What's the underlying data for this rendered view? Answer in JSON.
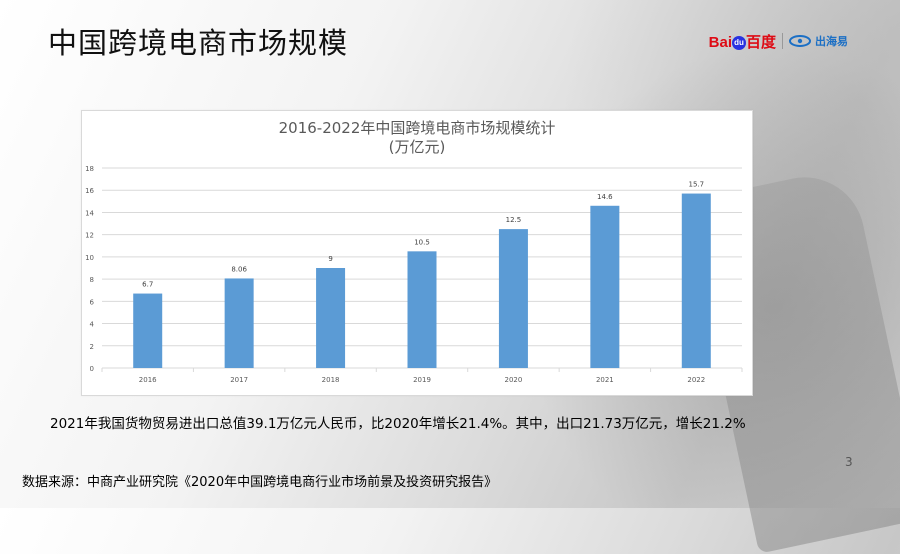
{
  "slide": {
    "title": "中国跨境电商市场规模",
    "paragraph": "2021年我国货物贸易进出口总值39.1万亿元人民币，比2020年增长21.4%。其中，出口21.73万亿元，增长21.2%",
    "source": "数据来源：中商产业研究院《2020年中国跨境电商行业市场前景及投资研究报告》",
    "page_number": "3"
  },
  "logos": {
    "baidu_text": "Bai",
    "baidu_paw": "du",
    "baidu_cn": "百度",
    "chuhaiyi_text": "出海易",
    "chuhaiyi_sub": "OVERSEASIA"
  },
  "colors": {
    "bar": "#5b9bd5",
    "axis_text": "#595959",
    "gridline": "#d9d9d9"
  },
  "chart_data": {
    "type": "bar",
    "title_line1": "2016-2022年中国跨境电商市场规模统计",
    "title_line2": "(万亿元)",
    "categories": [
      "2016",
      "2017",
      "2018",
      "2019",
      "2020",
      "2021",
      "2022"
    ],
    "values": [
      6.7,
      8.06,
      9,
      10.5,
      12.5,
      14.6,
      15.7
    ],
    "value_labels": [
      "6.7",
      "8.06",
      "9",
      "10.5",
      "12.5",
      "14.6",
      "15.7"
    ],
    "ylim": [
      0,
      18
    ],
    "yticks": [
      "0",
      "2",
      "4",
      "6",
      "8",
      "10",
      "12",
      "14",
      "16",
      "18"
    ],
    "grid": true,
    "legend": false
  }
}
